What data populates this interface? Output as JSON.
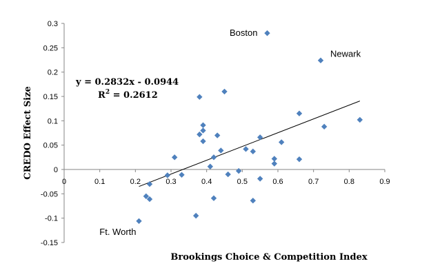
{
  "chart_data": {
    "type": "scatter",
    "title": "",
    "xlabel": "Brookings Choice & Competition Index",
    "ylabel": "CREDO Effect Size",
    "xlim": [
      0,
      0.9
    ],
    "ylim": [
      -0.15,
      0.3
    ],
    "xticks": [
      0,
      0.1,
      0.2,
      0.3,
      0.4,
      0.5,
      0.6,
      0.7,
      0.8,
      0.9
    ],
    "yticks": [
      -0.15,
      -0.1,
      -0.05,
      0,
      0.05,
      0.1,
      0.15,
      0.2,
      0.25,
      0.3
    ],
    "xtick_labels": [
      "0",
      "0.1",
      "0.2",
      "0.3",
      "0.4",
      "0.5",
      "0.6",
      "0.7",
      "0.8",
      "0.9"
    ],
    "ytick_labels": [
      "-0.15",
      "-0.1",
      "-0.05",
      "0",
      "0.05",
      "0.1",
      "0.15",
      "0.2",
      "0.25",
      "0.3"
    ],
    "grid": false,
    "marker_color": "#4F81BD",
    "points": [
      {
        "x": 0.57,
        "y": 0.28,
        "label": "Boston"
      },
      {
        "x": 0.72,
        "y": 0.224,
        "label": "Newark"
      },
      {
        "x": 0.21,
        "y": -0.106,
        "label": "Ft. Worth"
      },
      {
        "x": 0.45,
        "y": 0.16
      },
      {
        "x": 0.38,
        "y": 0.149
      },
      {
        "x": 0.66,
        "y": 0.115
      },
      {
        "x": 0.83,
        "y": 0.102
      },
      {
        "x": 0.39,
        "y": 0.091
      },
      {
        "x": 0.73,
        "y": 0.088
      },
      {
        "x": 0.39,
        "y": 0.08
      },
      {
        "x": 0.38,
        "y": 0.072
      },
      {
        "x": 0.43,
        "y": 0.07
      },
      {
        "x": 0.55,
        "y": 0.066
      },
      {
        "x": 0.39,
        "y": 0.058
      },
      {
        "x": 0.61,
        "y": 0.056
      },
      {
        "x": 0.51,
        "y": 0.042
      },
      {
        "x": 0.44,
        "y": 0.039
      },
      {
        "x": 0.53,
        "y": 0.037
      },
      {
        "x": 0.42,
        "y": 0.025
      },
      {
        "x": 0.31,
        "y": 0.025
      },
      {
        "x": 0.59,
        "y": 0.022
      },
      {
        "x": 0.66,
        "y": 0.021
      },
      {
        "x": 0.59,
        "y": 0.012
      },
      {
        "x": 0.41,
        "y": 0.006
      },
      {
        "x": 0.49,
        "y": -0.003
      },
      {
        "x": 0.46,
        "y": -0.01
      },
      {
        "x": 0.33,
        "y": -0.011
      },
      {
        "x": 0.29,
        "y": -0.012
      },
      {
        "x": 0.55,
        "y": -0.019
      },
      {
        "x": 0.24,
        "y": -0.03
      },
      {
        "x": 0.23,
        "y": -0.055
      },
      {
        "x": 0.42,
        "y": -0.059
      },
      {
        "x": 0.24,
        "y": -0.061
      },
      {
        "x": 0.53,
        "y": -0.064
      },
      {
        "x": 0.37,
        "y": -0.095
      }
    ],
    "trendline": {
      "slope": 0.2832,
      "intercept": -0.0944,
      "x_range": [
        0.21,
        0.83
      ],
      "equation_line1": "y = 0.2832x - 0.0944",
      "r2_prefix": "R",
      "r2_sup": "2",
      "r2_value": " = 0.2612"
    }
  }
}
